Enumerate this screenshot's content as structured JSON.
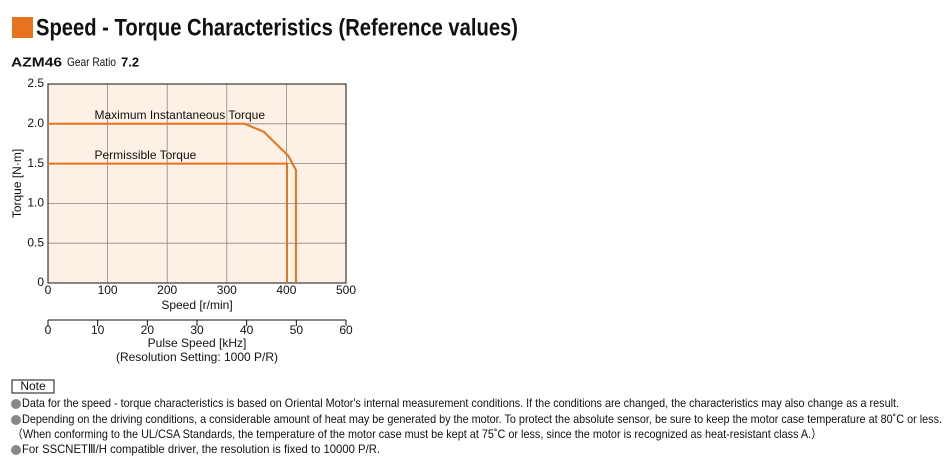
{
  "chart_data": {
    "type": "line",
    "title": "Speed - Torque Characteristics (Reference values)",
    "model": "AZM46",
    "ratio_label": "Gear Ratio",
    "ratio": "7.2",
    "xlabel": "Speed [r/min]",
    "ylabel": "Torque [N·m]",
    "xlim": [
      0,
      500
    ],
    "xticks": [
      0,
      100,
      200,
      300,
      400,
      500
    ],
    "ylim": [
      0,
      2.5
    ],
    "yticks": [
      0,
      0.5,
      {
        "value": 1,
        "label": "1.0"
      },
      1.5,
      {
        "value": 2,
        "label": "2.0"
      },
      2.5
    ],
    "grid": true,
    "background": "#fdf0e4",
    "x2label": "Pulse Speed [kHz]",
    "x2note": "(Resolution Setting: 1000 P/R)",
    "x2lim": [
      0,
      60
    ],
    "x2ticks": [
      0,
      10,
      20,
      30,
      40,
      50,
      60
    ],
    "series": [
      {
        "name": "Maximum Instantaneous Torque",
        "color": "#e8731e",
        "x": [
          0,
          330,
          362,
          403,
          416,
          416
        ],
        "values": [
          2.0,
          2.0,
          1.9,
          1.6,
          1.42,
          0
        ],
        "label_at": [
          78,
          2.1
        ]
      },
      {
        "name": "Permissible Torque",
        "color": "#e8731e",
        "x": [
          0,
          401,
          401
        ],
        "values": [
          1.5,
          1.5,
          0
        ],
        "label_at": [
          78,
          1.6
        ]
      }
    ]
  },
  "notes": {
    "label": "Note",
    "items": [
      "Data for the speed - torque characteristics is based on Oriental Motor's internal measurement conditions. If the conditions are changed, the characteristics may also change as a result.",
      "Depending on the driving conditions, a considerable amount of heat may be generated by the motor.  To protect the absolute sensor, be sure to keep the motor case temperature at 80˚C or less.",
      "（When conforming to the UL/CSA Standards, the temperature of the motor case must be kept at 75˚C or less, since the motor is recognized as heat-resistant class A.）",
      "For SSCNETⅢ/H compatible driver, the resolution is fixed to 10000 P/R."
    ]
  }
}
